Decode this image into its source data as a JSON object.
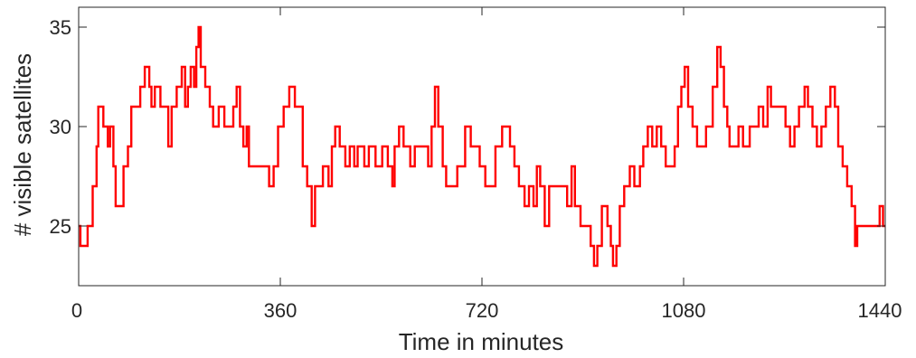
{
  "chart_data": {
    "type": "line",
    "title": "",
    "xlabel": "Time in minutes",
    "ylabel": "# visible satellites",
    "xlim": [
      0,
      1440
    ],
    "ylim": [
      22,
      36
    ],
    "xticks": [
      0,
      360,
      720,
      1080,
      1440
    ],
    "yticks": [
      25,
      30,
      35
    ],
    "grid": false,
    "line_color": "#ff0000",
    "series": [
      {
        "step": true,
        "points": [
          [
            0,
            25
          ],
          [
            3,
            24
          ],
          [
            16,
            25
          ],
          [
            25,
            27
          ],
          [
            32,
            29
          ],
          [
            35,
            31
          ],
          [
            44,
            30
          ],
          [
            52,
            29
          ],
          [
            56,
            30
          ],
          [
            62,
            28
          ],
          [
            66,
            26
          ],
          [
            80,
            28
          ],
          [
            88,
            29
          ],
          [
            94,
            31
          ],
          [
            110,
            32
          ],
          [
            118,
            33
          ],
          [
            126,
            32
          ],
          [
            130,
            31
          ],
          [
            136,
            32
          ],
          [
            146,
            31
          ],
          [
            160,
            29
          ],
          [
            166,
            31
          ],
          [
            175,
            32
          ],
          [
            184,
            33
          ],
          [
            190,
            31
          ],
          [
            195,
            32
          ],
          [
            200,
            33
          ],
          [
            206,
            32
          ],
          [
            210,
            34
          ],
          [
            214,
            35
          ],
          [
            218,
            33
          ],
          [
            226,
            32
          ],
          [
            234,
            31
          ],
          [
            240,
            30
          ],
          [
            250,
            31
          ],
          [
            260,
            30
          ],
          [
            276,
            31
          ],
          [
            282,
            32
          ],
          [
            288,
            30
          ],
          [
            294,
            29
          ],
          [
            300,
            30
          ],
          [
            304,
            28
          ],
          [
            340,
            27
          ],
          [
            348,
            28
          ],
          [
            356,
            30
          ],
          [
            366,
            31
          ],
          [
            376,
            32
          ],
          [
            386,
            31
          ],
          [
            400,
            28
          ],
          [
            408,
            27
          ],
          [
            416,
            25
          ],
          [
            422,
            27
          ],
          [
            436,
            28
          ],
          [
            446,
            27
          ],
          [
            452,
            29
          ],
          [
            458,
            30
          ],
          [
            466,
            29
          ],
          [
            476,
            28
          ],
          [
            484,
            29
          ],
          [
            492,
            28
          ],
          [
            498,
            29
          ],
          [
            510,
            28
          ],
          [
            518,
            29
          ],
          [
            530,
            28
          ],
          [
            542,
            29
          ],
          [
            552,
            28
          ],
          [
            560,
            27
          ],
          [
            564,
            29
          ],
          [
            572,
            30
          ],
          [
            580,
            29
          ],
          [
            592,
            28
          ],
          [
            600,
            29
          ],
          [
            624,
            28
          ],
          [
            630,
            30
          ],
          [
            636,
            32
          ],
          [
            642,
            30
          ],
          [
            650,
            28
          ],
          [
            656,
            27
          ],
          [
            676,
            28
          ],
          [
            690,
            30
          ],
          [
            700,
            29
          ],
          [
            716,
            28
          ],
          [
            726,
            27
          ],
          [
            744,
            29
          ],
          [
            756,
            30
          ],
          [
            770,
            29
          ],
          [
            778,
            28
          ],
          [
            786,
            27
          ],
          [
            796,
            26
          ],
          [
            804,
            27
          ],
          [
            812,
            26
          ],
          [
            818,
            28
          ],
          [
            824,
            27
          ],
          [
            832,
            25
          ],
          [
            840,
            27
          ],
          [
            872,
            26
          ],
          [
            880,
            28
          ],
          [
            886,
            26
          ],
          [
            896,
            25
          ],
          [
            914,
            24
          ],
          [
            920,
            23
          ],
          [
            926,
            24
          ],
          [
            934,
            26
          ],
          [
            944,
            25
          ],
          [
            950,
            24
          ],
          [
            954,
            23
          ],
          [
            960,
            24
          ],
          [
            966,
            26
          ],
          [
            974,
            27
          ],
          [
            984,
            28
          ],
          [
            992,
            27
          ],
          [
            1002,
            28
          ],
          [
            1008,
            29
          ],
          [
            1016,
            30
          ],
          [
            1024,
            29
          ],
          [
            1032,
            30
          ],
          [
            1040,
            29
          ],
          [
            1048,
            28
          ],
          [
            1064,
            29
          ],
          [
            1070,
            31
          ],
          [
            1076,
            32
          ],
          [
            1082,
            33
          ],
          [
            1088,
            31
          ],
          [
            1096,
            30
          ],
          [
            1104,
            29
          ],
          [
            1120,
            30
          ],
          [
            1132,
            32
          ],
          [
            1140,
            34
          ],
          [
            1146,
            33
          ],
          [
            1152,
            31
          ],
          [
            1158,
            30
          ],
          [
            1162,
            29
          ],
          [
            1178,
            30
          ],
          [
            1186,
            29
          ],
          [
            1198,
            30
          ],
          [
            1214,
            31
          ],
          [
            1222,
            30
          ],
          [
            1230,
            32
          ],
          [
            1236,
            31
          ],
          [
            1262,
            30
          ],
          [
            1270,
            29
          ],
          [
            1278,
            30
          ],
          [
            1286,
            31
          ],
          [
            1296,
            32
          ],
          [
            1302,
            31
          ],
          [
            1310,
            30
          ],
          [
            1318,
            29
          ],
          [
            1326,
            30
          ],
          [
            1334,
            31
          ],
          [
            1342,
            32
          ],
          [
            1350,
            31
          ],
          [
            1356,
            29
          ],
          [
            1364,
            28
          ],
          [
            1372,
            27
          ],
          [
            1380,
            26
          ],
          [
            1386,
            24
          ],
          [
            1390,
            25
          ],
          [
            1430,
            26
          ],
          [
            1436,
            25
          ],
          [
            1440,
            25
          ]
        ]
      }
    ]
  }
}
